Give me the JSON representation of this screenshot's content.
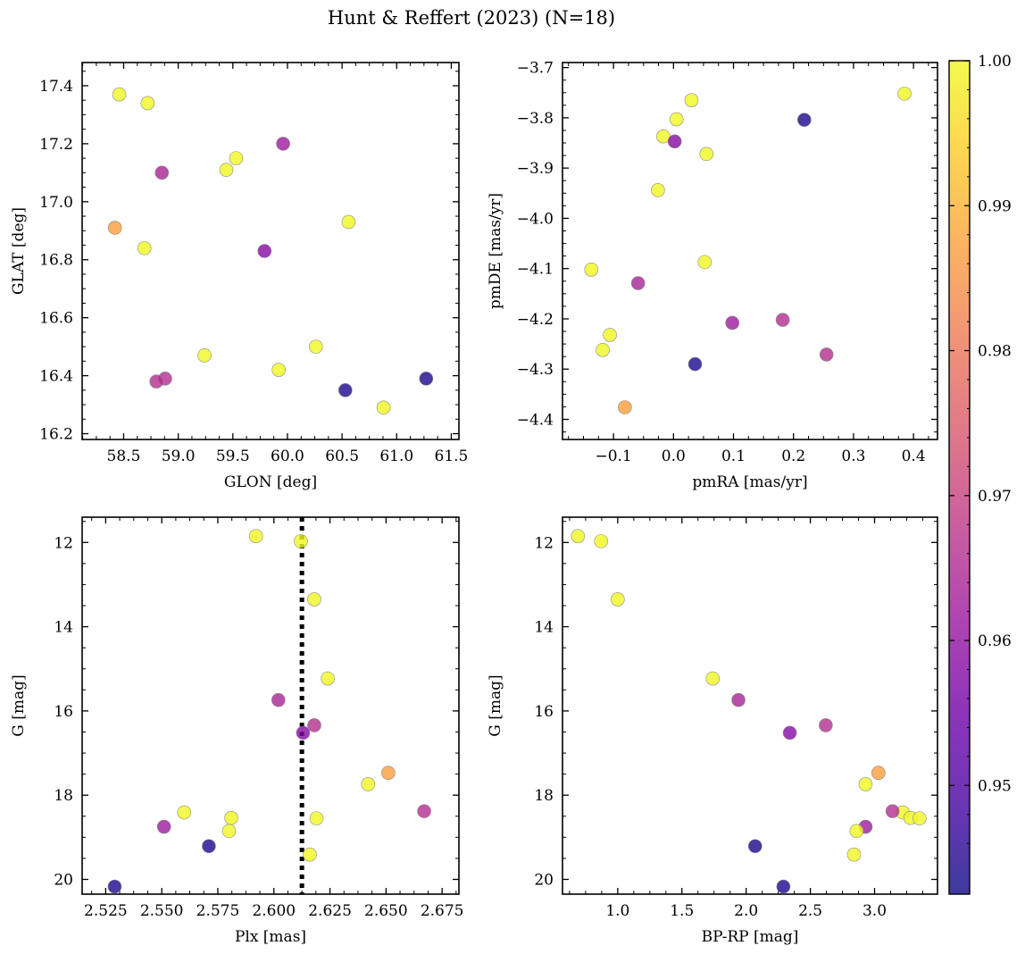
{
  "title": "Hunt & Reffert (2023) (N=18)",
  "colorbar": {
    "vmin": 0.9425,
    "vmax": 1.0,
    "ticks": [
      0.95,
      0.96,
      0.97,
      0.98,
      0.99,
      1.0
    ],
    "tick_labels": [
      "0.95",
      "0.96",
      "0.97",
      "0.98",
      "0.99",
      "1.00"
    ],
    "colormap": "plasma",
    "colormap_stops": [
      "#0d0887",
      "#46039f",
      "#7201a8",
      "#9c179e",
      "#bd3786",
      "#d8576b",
      "#ed7953",
      "#fb9f3a",
      "#fdca26",
      "#f0f921"
    ],
    "marker_alpha": 0.8,
    "marker_edge": "#8a8a8a"
  },
  "chart_data": [
    {
      "type": "scatter",
      "name": "position",
      "xlabel": "GLON [deg]",
      "ylabel": "GLAT [deg]",
      "xlim": [
        58.12,
        61.57
      ],
      "ylim": [
        16.18,
        17.48
      ],
      "xticks": [
        58.5,
        59.0,
        59.5,
        60.0,
        60.5,
        61.0,
        61.5
      ],
      "xtick_labels": [
        "58.5",
        "59.0",
        "59.5",
        "60.0",
        "60.5",
        "61.0",
        "61.5"
      ],
      "yticks": [
        16.2,
        16.4,
        16.6,
        16.8,
        17.0,
        17.2,
        17.4
      ],
      "ytick_labels": [
        "16.2",
        "16.4",
        "16.6",
        "16.8",
        "17.0",
        "17.2",
        "17.4"
      ],
      "invert_y": false,
      "points": [
        {
          "x": 58.46,
          "y": 17.37,
          "c": 1.0
        },
        {
          "x": 58.72,
          "y": 17.34,
          "c": 1.0
        },
        {
          "x": 59.96,
          "y": 17.2,
          "c": 0.962
        },
        {
          "x": 59.53,
          "y": 17.15,
          "c": 1.0
        },
        {
          "x": 59.44,
          "y": 17.11,
          "c": 1.0
        },
        {
          "x": 58.85,
          "y": 17.1,
          "c": 0.964
        },
        {
          "x": 60.56,
          "y": 16.93,
          "c": 1.0
        },
        {
          "x": 58.42,
          "y": 16.91,
          "c": 0.987
        },
        {
          "x": 58.69,
          "y": 16.84,
          "c": 1.0
        },
        {
          "x": 59.79,
          "y": 16.83,
          "c": 0.958
        },
        {
          "x": 60.26,
          "y": 16.5,
          "c": 1.0
        },
        {
          "x": 59.24,
          "y": 16.47,
          "c": 1.0
        },
        {
          "x": 59.92,
          "y": 16.42,
          "c": 1.0
        },
        {
          "x": 58.88,
          "y": 16.39,
          "c": 0.966
        },
        {
          "x": 61.27,
          "y": 16.39,
          "c": 0.944
        },
        {
          "x": 58.8,
          "y": 16.38,
          "c": 0.966
        },
        {
          "x": 60.53,
          "y": 16.35,
          "c": 0.944
        },
        {
          "x": 60.88,
          "y": 16.29,
          "c": 1.0
        }
      ]
    },
    {
      "type": "scatter",
      "name": "proper-motion",
      "xlabel": "pmRA [mas/yr]",
      "ylabel": "pmDE [mas/yr]",
      "xlim": [
        -0.185,
        0.44
      ],
      "ylim": [
        -4.44,
        -3.69
      ],
      "xticks": [
        -0.1,
        0.0,
        0.1,
        0.2,
        0.3,
        0.4
      ],
      "xtick_labels": [
        "−0.1",
        "0.0",
        "0.1",
        "0.2",
        "0.3",
        "0.4"
      ],
      "yticks": [
        -4.4,
        -4.3,
        -4.2,
        -4.1,
        -4.0,
        -3.9,
        -3.8,
        -3.7
      ],
      "ytick_labels": [
        "−4.4",
        "−4.3",
        "−4.2",
        "−4.1",
        "−4.0",
        "−3.9",
        "−3.8",
        "−3.7"
      ],
      "invert_y": false,
      "points": [
        {
          "x": 0.385,
          "y": -3.752,
          "c": 1.0
        },
        {
          "x": 0.03,
          "y": -3.765,
          "c": 1.0
        },
        {
          "x": 0.218,
          "y": -3.804,
          "c": 0.944
        },
        {
          "x": 0.005,
          "y": -3.803,
          "c": 1.0
        },
        {
          "x": -0.017,
          "y": -3.837,
          "c": 1.0
        },
        {
          "x": 0.002,
          "y": -3.847,
          "c": 0.958
        },
        {
          "x": 0.055,
          "y": -3.872,
          "c": 1.0
        },
        {
          "x": -0.026,
          "y": -3.944,
          "c": 1.0
        },
        {
          "x": 0.052,
          "y": -4.087,
          "c": 1.0
        },
        {
          "x": -0.137,
          "y": -4.102,
          "c": 1.0
        },
        {
          "x": -0.059,
          "y": -4.129,
          "c": 0.964
        },
        {
          "x": 0.182,
          "y": -4.202,
          "c": 0.966
        },
        {
          "x": 0.098,
          "y": -4.208,
          "c": 0.962
        },
        {
          "x": -0.106,
          "y": -4.232,
          "c": 1.0
        },
        {
          "x": -0.118,
          "y": -4.262,
          "c": 1.0
        },
        {
          "x": 0.255,
          "y": -4.271,
          "c": 0.966
        },
        {
          "x": 0.036,
          "y": -4.29,
          "c": 0.944
        },
        {
          "x": -0.081,
          "y": -4.376,
          "c": 0.987
        }
      ]
    },
    {
      "type": "scatter",
      "name": "parallax-magnitude",
      "xlabel": "Plx [mas]",
      "ylabel": "G [mag]",
      "xlim": [
        2.5145,
        2.6825
      ],
      "ylim": [
        20.35,
        11.4
      ],
      "xticks": [
        2.525,
        2.55,
        2.575,
        2.6,
        2.625,
        2.65,
        2.675
      ],
      "xtick_labels": [
        "2.525",
        "2.550",
        "2.575",
        "2.600",
        "2.625",
        "2.650",
        "2.675"
      ],
      "yticks": [
        12,
        14,
        16,
        18,
        20
      ],
      "ytick_labels": [
        "12",
        "14",
        "16",
        "18",
        "20"
      ],
      "invert_y": true,
      "vline": {
        "x": 2.6125,
        "style": "dotted"
      },
      "points": [
        {
          "x": 2.592,
          "y": 11.85,
          "c": 1.0
        },
        {
          "x": 2.612,
          "y": 11.97,
          "c": 1.0
        },
        {
          "x": 2.618,
          "y": 13.35,
          "c": 1.0
        },
        {
          "x": 2.624,
          "y": 15.23,
          "c": 1.0
        },
        {
          "x": 2.602,
          "y": 15.74,
          "c": 0.964
        },
        {
          "x": 2.618,
          "y": 16.34,
          "c": 0.966
        },
        {
          "x": 2.613,
          "y": 16.52,
          "c": 0.958
        },
        {
          "x": 2.651,
          "y": 17.47,
          "c": 0.987
        },
        {
          "x": 2.642,
          "y": 17.74,
          "c": 1.0
        },
        {
          "x": 2.56,
          "y": 18.41,
          "c": 1.0
        },
        {
          "x": 2.667,
          "y": 18.38,
          "c": 0.966
        },
        {
          "x": 2.581,
          "y": 18.54,
          "c": 1.0
        },
        {
          "x": 2.619,
          "y": 18.55,
          "c": 1.0
        },
        {
          "x": 2.551,
          "y": 18.75,
          "c": 0.962
        },
        {
          "x": 2.58,
          "y": 18.85,
          "c": 1.0
        },
        {
          "x": 2.571,
          "y": 19.21,
          "c": 0.944
        },
        {
          "x": 2.616,
          "y": 19.41,
          "c": 1.0
        },
        {
          "x": 2.529,
          "y": 20.17,
          "c": 0.944
        }
      ]
    },
    {
      "type": "scatter",
      "name": "color-magnitude",
      "xlabel": "BP-RP [mag]",
      "ylabel": "G [mag]",
      "xlim": [
        0.57,
        3.49
      ],
      "ylim": [
        20.35,
        11.4
      ],
      "xticks": [
        1.0,
        1.5,
        2.0,
        2.5,
        3.0
      ],
      "xtick_labels": [
        "1.0",
        "1.5",
        "2.0",
        "2.5",
        "3.0"
      ],
      "yticks": [
        12,
        14,
        16,
        18,
        20
      ],
      "ytick_labels": [
        "12",
        "14",
        "16",
        "18",
        "20"
      ],
      "invert_y": true,
      "points": [
        {
          "x": 0.69,
          "y": 11.85,
          "c": 1.0
        },
        {
          "x": 0.87,
          "y": 11.97,
          "c": 1.0
        },
        {
          "x": 1.0,
          "y": 13.35,
          "c": 1.0
        },
        {
          "x": 1.74,
          "y": 15.23,
          "c": 1.0
        },
        {
          "x": 1.94,
          "y": 15.74,
          "c": 0.964
        },
        {
          "x": 2.62,
          "y": 16.34,
          "c": 0.966
        },
        {
          "x": 2.34,
          "y": 16.52,
          "c": 0.958
        },
        {
          "x": 3.03,
          "y": 17.47,
          "c": 0.987
        },
        {
          "x": 2.93,
          "y": 17.74,
          "c": 1.0
        },
        {
          "x": 3.22,
          "y": 18.41,
          "c": 1.0
        },
        {
          "x": 3.14,
          "y": 18.38,
          "c": 0.966
        },
        {
          "x": 3.28,
          "y": 18.54,
          "c": 1.0
        },
        {
          "x": 3.35,
          "y": 18.55,
          "c": 1.0
        },
        {
          "x": 2.93,
          "y": 18.75,
          "c": 0.962
        },
        {
          "x": 2.86,
          "y": 18.85,
          "c": 1.0
        },
        {
          "x": 2.07,
          "y": 19.21,
          "c": 0.944
        },
        {
          "x": 2.84,
          "y": 19.41,
          "c": 1.0
        },
        {
          "x": 2.29,
          "y": 20.17,
          "c": 0.944
        }
      ]
    }
  ]
}
